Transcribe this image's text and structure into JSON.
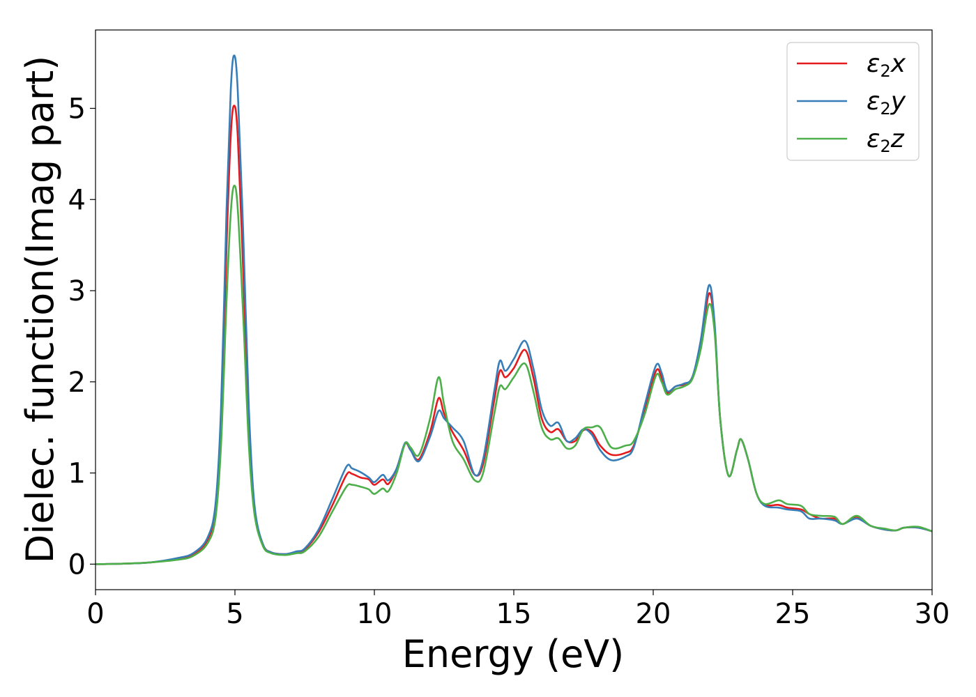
{
  "chart_data": {
    "type": "line",
    "title": "",
    "xlabel": "Energy (eV)",
    "ylabel": "Dielec. function(Imag part)",
    "xlim": [
      0,
      30
    ],
    "ylim": [
      -0.28,
      5.86
    ],
    "xticks": [
      "0",
      "5",
      "10",
      "15",
      "20",
      "25",
      "30"
    ],
    "yticks": [
      "0",
      "1",
      "2",
      "3",
      "4",
      "5"
    ],
    "grid": false,
    "legend_position": "top-right",
    "series": [
      {
        "name": "ε₂x",
        "legend_base": "ε",
        "legend_sub": "2",
        "legend_var": "x",
        "color": "#e41a1c",
        "points": [
          [
            0,
            0
          ],
          [
            1,
            0.005
          ],
          [
            2,
            0.02
          ],
          [
            3,
            0.06
          ],
          [
            3.5,
            0.1
          ],
          [
            4,
            0.25
          ],
          [
            4.3,
            0.6
          ],
          [
            4.5,
            1.5
          ],
          [
            4.7,
            3.5
          ],
          [
            4.85,
            4.7
          ],
          [
            4.97,
            5.03
          ],
          [
            5.1,
            4.7
          ],
          [
            5.3,
            3.2
          ],
          [
            5.5,
            1.5
          ],
          [
            5.7,
            0.6
          ],
          [
            6,
            0.22
          ],
          [
            6.3,
            0.13
          ],
          [
            6.8,
            0.11
          ],
          [
            7.2,
            0.13
          ],
          [
            7.5,
            0.16
          ],
          [
            8,
            0.35
          ],
          [
            8.5,
            0.65
          ],
          [
            9,
            0.98
          ],
          [
            9.2,
            0.99
          ],
          [
            9.5,
            0.95
          ],
          [
            9.8,
            0.93
          ],
          [
            10,
            0.87
          ],
          [
            10.3,
            0.93
          ],
          [
            10.5,
            0.88
          ],
          [
            10.8,
            1.05
          ],
          [
            11.1,
            1.32
          ],
          [
            11.3,
            1.25
          ],
          [
            11.6,
            1.15
          ],
          [
            12,
            1.45
          ],
          [
            12.3,
            1.82
          ],
          [
            12.5,
            1.65
          ],
          [
            12.8,
            1.45
          ],
          [
            13.2,
            1.25
          ],
          [
            13.6,
            0.98
          ],
          [
            13.9,
            1.1
          ],
          [
            14.3,
            1.8
          ],
          [
            14.5,
            2.12
          ],
          [
            14.7,
            2.05
          ],
          [
            15,
            2.15
          ],
          [
            15.4,
            2.35
          ],
          [
            15.7,
            2.05
          ],
          [
            16,
            1.6
          ],
          [
            16.3,
            1.45
          ],
          [
            16.6,
            1.48
          ],
          [
            16.9,
            1.35
          ],
          [
            17.2,
            1.35
          ],
          [
            17.5,
            1.47
          ],
          [
            17.8,
            1.45
          ],
          [
            18.1,
            1.3
          ],
          [
            18.5,
            1.2
          ],
          [
            19,
            1.22
          ],
          [
            19.3,
            1.3
          ],
          [
            19.7,
            1.7
          ],
          [
            20.1,
            2.12
          ],
          [
            20.3,
            2.05
          ],
          [
            20.5,
            1.88
          ],
          [
            20.8,
            1.95
          ],
          [
            21.1,
            1.97
          ],
          [
            21.4,
            2.05
          ],
          [
            21.7,
            2.4
          ],
          [
            22,
            2.97
          ],
          [
            22.2,
            2.6
          ],
          [
            22.4,
            1.6
          ],
          [
            22.7,
            0.97
          ],
          [
            23,
            1.25
          ],
          [
            23.15,
            1.37
          ],
          [
            23.4,
            1.15
          ],
          [
            23.7,
            0.78
          ],
          [
            24,
            0.65
          ],
          [
            24.5,
            0.65
          ],
          [
            24.8,
            0.62
          ],
          [
            25.3,
            0.6
          ],
          [
            25.6,
            0.55
          ],
          [
            26,
            0.5
          ],
          [
            26.5,
            0.5
          ],
          [
            26.8,
            0.44
          ],
          [
            27.3,
            0.52
          ],
          [
            27.8,
            0.42
          ],
          [
            28.3,
            0.38
          ],
          [
            28.7,
            0.37
          ],
          [
            29,
            0.4
          ],
          [
            29.5,
            0.4
          ],
          [
            30,
            0.36
          ]
        ]
      },
      {
        "name": "ε₂y",
        "legend_base": "ε",
        "legend_sub": "2",
        "legend_var": "y",
        "color": "#377eb8",
        "points": [
          [
            0,
            0
          ],
          [
            1,
            0.005
          ],
          [
            2,
            0.02
          ],
          [
            3,
            0.07
          ],
          [
            3.5,
            0.12
          ],
          [
            4,
            0.28
          ],
          [
            4.3,
            0.65
          ],
          [
            4.5,
            1.7
          ],
          [
            4.7,
            3.9
          ],
          [
            4.85,
            5.2
          ],
          [
            4.97,
            5.58
          ],
          [
            5.1,
            5.2
          ],
          [
            5.3,
            3.6
          ],
          [
            5.5,
            1.7
          ],
          [
            5.7,
            0.65
          ],
          [
            6,
            0.22
          ],
          [
            6.3,
            0.13
          ],
          [
            6.8,
            0.11
          ],
          [
            7.2,
            0.14
          ],
          [
            7.5,
            0.17
          ],
          [
            8,
            0.38
          ],
          [
            8.5,
            0.72
          ],
          [
            9,
            1.07
          ],
          [
            9.2,
            1.05
          ],
          [
            9.5,
            1.01
          ],
          [
            9.8,
            0.95
          ],
          [
            10,
            0.9
          ],
          [
            10.3,
            0.98
          ],
          [
            10.5,
            0.92
          ],
          [
            10.8,
            1.05
          ],
          [
            11.1,
            1.33
          ],
          [
            11.3,
            1.25
          ],
          [
            11.6,
            1.13
          ],
          [
            12,
            1.4
          ],
          [
            12.3,
            1.68
          ],
          [
            12.5,
            1.6
          ],
          [
            12.8,
            1.5
          ],
          [
            13.2,
            1.35
          ],
          [
            13.6,
            0.98
          ],
          [
            13.9,
            1.15
          ],
          [
            14.3,
            1.9
          ],
          [
            14.5,
            2.23
          ],
          [
            14.7,
            2.12
          ],
          [
            15,
            2.25
          ],
          [
            15.4,
            2.45
          ],
          [
            15.7,
            2.15
          ],
          [
            16,
            1.7
          ],
          [
            16.3,
            1.52
          ],
          [
            16.6,
            1.55
          ],
          [
            16.9,
            1.35
          ],
          [
            17.2,
            1.38
          ],
          [
            17.5,
            1.48
          ],
          [
            17.8,
            1.42
          ],
          [
            18.1,
            1.25
          ],
          [
            18.5,
            1.14
          ],
          [
            19,
            1.18
          ],
          [
            19.3,
            1.28
          ],
          [
            19.7,
            1.75
          ],
          [
            20.1,
            2.18
          ],
          [
            20.3,
            2.1
          ],
          [
            20.5,
            1.9
          ],
          [
            20.8,
            1.95
          ],
          [
            21.1,
            1.98
          ],
          [
            21.4,
            2.05
          ],
          [
            21.7,
            2.45
          ],
          [
            22,
            3.06
          ],
          [
            22.2,
            2.65
          ],
          [
            22.4,
            1.6
          ],
          [
            22.7,
            0.97
          ],
          [
            23,
            1.25
          ],
          [
            23.15,
            1.37
          ],
          [
            23.4,
            1.15
          ],
          [
            23.7,
            0.78
          ],
          [
            24,
            0.64
          ],
          [
            24.5,
            0.62
          ],
          [
            24.8,
            0.6
          ],
          [
            25.3,
            0.58
          ],
          [
            25.6,
            0.5
          ],
          [
            26,
            0.5
          ],
          [
            26.5,
            0.48
          ],
          [
            26.8,
            0.44
          ],
          [
            27.3,
            0.5
          ],
          [
            27.8,
            0.42
          ],
          [
            28.3,
            0.38
          ],
          [
            28.7,
            0.37
          ],
          [
            29,
            0.4
          ],
          [
            29.5,
            0.4
          ],
          [
            30,
            0.36
          ]
        ]
      },
      {
        "name": "ε₂z",
        "legend_base": "ε",
        "legend_sub": "2",
        "legend_var": "z",
        "color": "#4daf4a",
        "points": [
          [
            0,
            0
          ],
          [
            1,
            0.005
          ],
          [
            2,
            0.02
          ],
          [
            3,
            0.05
          ],
          [
            3.5,
            0.09
          ],
          [
            4,
            0.22
          ],
          [
            4.3,
            0.5
          ],
          [
            4.5,
            1.3
          ],
          [
            4.7,
            2.9
          ],
          [
            4.85,
            3.85
          ],
          [
            4.97,
            4.15
          ],
          [
            5.1,
            3.9
          ],
          [
            5.3,
            2.7
          ],
          [
            5.5,
            1.3
          ],
          [
            5.7,
            0.55
          ],
          [
            6,
            0.2
          ],
          [
            6.3,
            0.12
          ],
          [
            6.8,
            0.1
          ],
          [
            7.2,
            0.12
          ],
          [
            7.5,
            0.14
          ],
          [
            8,
            0.3
          ],
          [
            8.5,
            0.58
          ],
          [
            9,
            0.85
          ],
          [
            9.2,
            0.87
          ],
          [
            9.5,
            0.85
          ],
          [
            9.8,
            0.82
          ],
          [
            10,
            0.77
          ],
          [
            10.3,
            0.83
          ],
          [
            10.5,
            0.8
          ],
          [
            10.8,
            1.0
          ],
          [
            11.1,
            1.32
          ],
          [
            11.3,
            1.28
          ],
          [
            11.6,
            1.2
          ],
          [
            12,
            1.6
          ],
          [
            12.3,
            2.05
          ],
          [
            12.5,
            1.75
          ],
          [
            12.8,
            1.35
          ],
          [
            13.2,
            1.15
          ],
          [
            13.6,
            0.92
          ],
          [
            13.9,
            1.0
          ],
          [
            14.3,
            1.65
          ],
          [
            14.5,
            1.95
          ],
          [
            14.7,
            1.92
          ],
          [
            15,
            2.05
          ],
          [
            15.4,
            2.2
          ],
          [
            15.7,
            1.9
          ],
          [
            16,
            1.5
          ],
          [
            16.3,
            1.37
          ],
          [
            16.6,
            1.38
          ],
          [
            16.9,
            1.27
          ],
          [
            17.2,
            1.3
          ],
          [
            17.5,
            1.48
          ],
          [
            17.8,
            1.5
          ],
          [
            18.1,
            1.5
          ],
          [
            18.5,
            1.28
          ],
          [
            19,
            1.3
          ],
          [
            19.3,
            1.35
          ],
          [
            19.7,
            1.65
          ],
          [
            20.1,
            2.07
          ],
          [
            20.3,
            2.0
          ],
          [
            20.5,
            1.86
          ],
          [
            20.8,
            1.92
          ],
          [
            21.1,
            1.95
          ],
          [
            21.4,
            2.03
          ],
          [
            21.7,
            2.35
          ],
          [
            22,
            2.85
          ],
          [
            22.2,
            2.55
          ],
          [
            22.4,
            1.6
          ],
          [
            22.7,
            0.97
          ],
          [
            23,
            1.25
          ],
          [
            23.15,
            1.37
          ],
          [
            23.4,
            1.15
          ],
          [
            23.7,
            0.78
          ],
          [
            24,
            0.66
          ],
          [
            24.5,
            0.7
          ],
          [
            24.8,
            0.66
          ],
          [
            25.3,
            0.64
          ],
          [
            25.6,
            0.55
          ],
          [
            26,
            0.53
          ],
          [
            26.5,
            0.52
          ],
          [
            26.8,
            0.44
          ],
          [
            27.3,
            0.53
          ],
          [
            27.8,
            0.42
          ],
          [
            28.3,
            0.39
          ],
          [
            28.7,
            0.37
          ],
          [
            29,
            0.4
          ],
          [
            29.5,
            0.41
          ],
          [
            30,
            0.36
          ]
        ]
      }
    ]
  }
}
